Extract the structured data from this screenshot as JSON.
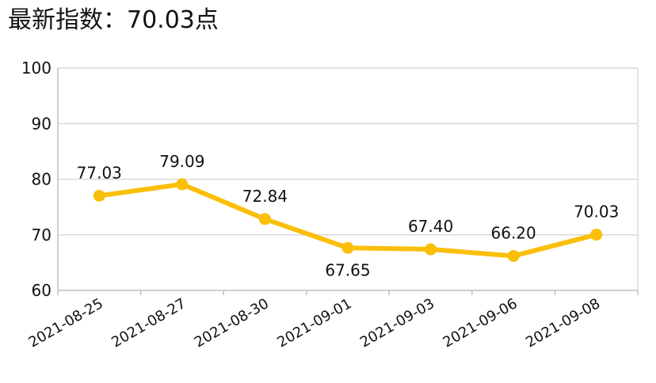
{
  "title": "最新指数：70.03点",
  "chart_data": {
    "type": "line",
    "categories": [
      "2021-08-25",
      "2021-08-27",
      "2021-08-30",
      "2021-09-01",
      "2021-09-03",
      "2021-09-06",
      "2021-09-08"
    ],
    "series": [
      {
        "values": [
          77.03,
          79.09,
          72.84,
          67.65,
          67.4,
          66.2,
          70.03
        ],
        "labels": [
          "77.03",
          "79.09",
          "72.84",
          "67.65",
          "67.40",
          "66.20",
          "70.03"
        ],
        "label_positions": [
          "above",
          "above",
          "above",
          "below",
          "above",
          "above",
          "above"
        ],
        "color": "#FBBF0A"
      }
    ],
    "ylim": [
      60,
      100
    ],
    "yticks": [
      60,
      70,
      80,
      90,
      100
    ],
    "ytick_labels": [
      "60",
      "70",
      "80",
      "90",
      "100"
    ],
    "grid": true,
    "legend": "none",
    "colors": {
      "line": "#FBBF0A",
      "grid": "#D9D9D9",
      "axis": "#BFBFBF",
      "text": "#111111"
    }
  }
}
